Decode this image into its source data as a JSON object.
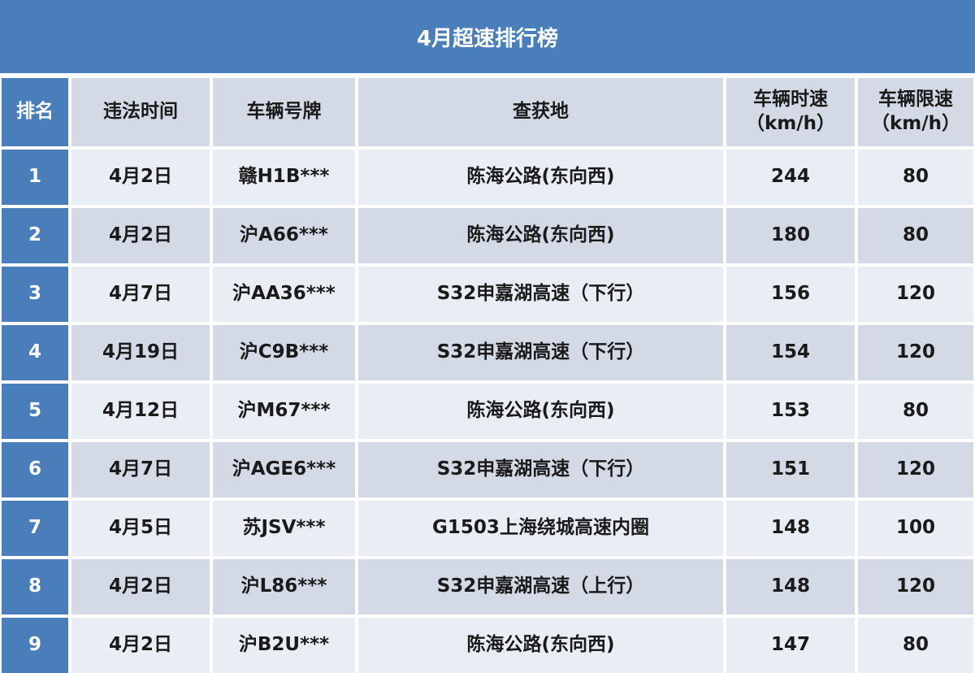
{
  "title": "4月超速排行榜",
  "headers": {
    "rank": "排名",
    "time": "违法时间",
    "plate": "车辆号牌",
    "location": "查获地",
    "speed": "车辆时速",
    "speed_unit": "（km/h）",
    "limit": "车辆限速",
    "limit_unit": "（km/h）"
  },
  "rows": [
    {
      "rank": "1",
      "time": "4月2日",
      "plate": "赣H1B***",
      "location": "陈海公路(东向西)",
      "speed": "244",
      "limit": "80"
    },
    {
      "rank": "2",
      "time": "4月2日",
      "plate": "沪A66***",
      "location": "陈海公路(东向西)",
      "speed": "180",
      "limit": "80"
    },
    {
      "rank": "3",
      "time": "4月7日",
      "plate": "沪AA36***",
      "location": "S32申嘉湖高速（下行）",
      "speed": "156",
      "limit": "120"
    },
    {
      "rank": "4",
      "time": "4月19日",
      "plate": "沪C9B***",
      "location": "S32申嘉湖高速（下行）",
      "speed": "154",
      "limit": "120"
    },
    {
      "rank": "5",
      "time": "4月12日",
      "plate": "沪M67***",
      "location": "陈海公路(东向西)",
      "speed": "153",
      "limit": "80"
    },
    {
      "rank": "6",
      "time": "4月7日",
      "plate": "沪AGE6***",
      "location": "S32申嘉湖高速（下行）",
      "speed": "151",
      "limit": "120"
    },
    {
      "rank": "7",
      "time": "4月5日",
      "plate": "苏JSV***",
      "location": "G1503上海绕城高速内圈",
      "speed": "148",
      "limit": "100"
    },
    {
      "rank": "8",
      "time": "4月2日",
      "plate": "沪L86***",
      "location": "S32申嘉湖高速（上行）",
      "speed": "148",
      "limit": "120"
    },
    {
      "rank": "9",
      "time": "4月2日",
      "plate": "沪B2U***",
      "location": "陈海公路(东向西)",
      "speed": "147",
      "limit": "80"
    }
  ],
  "colors": {
    "title_bg": "#4a7ebb",
    "header_bg": "#d3dae6",
    "row_odd": "#e9edf4",
    "row_even": "#d3dae6"
  }
}
